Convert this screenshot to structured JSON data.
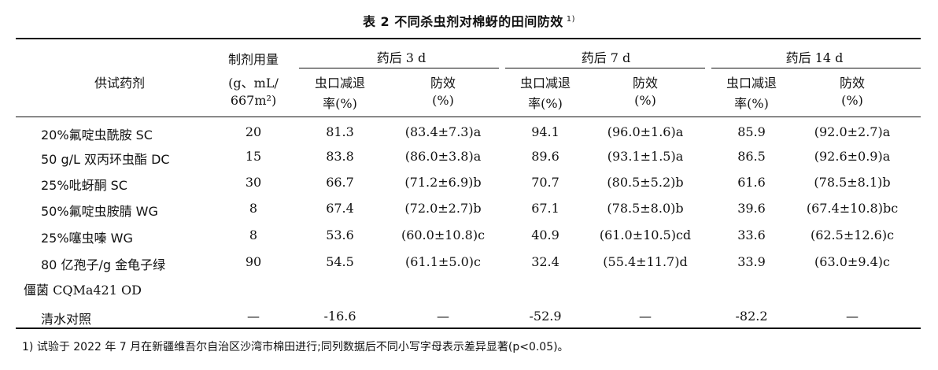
{
  "caption": {
    "title": "表 2   不同杀虫剂对棉蚜的田间防效",
    "note_mark": "1)"
  },
  "header": {
    "agent": "供试药剂",
    "dose_line1": "制剂用量",
    "dose_line2": "(g、mL/",
    "dose_line3": "667m²)",
    "groups": [
      "药后 3 d",
      "药后 7 d",
      "药后 14 d"
    ],
    "reduction_line1": "虫口减退",
    "reduction_line2": "率(%)",
    "efficacy_line1": "防效",
    "efficacy_line2": "(%)"
  },
  "rows": [
    {
      "agent": "20%氟啶虫酰胺 SC",
      "agent2": "",
      "dose": "20",
      "r3": "81.3",
      "e3": "(83.4±7.3)a",
      "r7": "94.1",
      "e7": "(96.0±1.6)a",
      "r14": "85.9",
      "e14": "(92.0±2.7)a"
    },
    {
      "agent": "50 g/L 双丙环虫酯 DC",
      "agent2": "",
      "dose": "15",
      "r3": "83.8",
      "e3": "(86.0±3.8)a",
      "r7": "89.6",
      "e7": "(93.1±1.5)a",
      "r14": "86.5",
      "e14": "(92.6±0.9)a"
    },
    {
      "agent": "25%吡蚜酮 SC",
      "agent2": "",
      "dose": "30",
      "r3": "66.7",
      "e3": "(71.2±6.9)b",
      "r7": "70.7",
      "e7": "(80.5±5.2)b",
      "r14": "61.6",
      "e14": "(78.5±8.1)b"
    },
    {
      "agent": "50%氟啶虫胺腈 WG",
      "agent2": "",
      "dose": "8",
      "r3": "67.4",
      "e3": "(72.0±2.7)b",
      "r7": "67.1",
      "e7": "(78.5±8.0)b",
      "r14": "39.6",
      "e14": "(67.4±10.8)bc"
    },
    {
      "agent": "25%噻虫嗪 WG",
      "agent2": "",
      "dose": "8",
      "r3": "53.6",
      "e3": "(60.0±10.8)c",
      "r7": "40.9",
      "e7": "(61.0±10.5)cd",
      "r14": "33.6",
      "e14": "(62.5±12.6)c"
    },
    {
      "agent": "80 亿孢子/g 金龟子绿",
      "agent2": "僵菌 CQMa421 OD",
      "dose": "90",
      "r3": "54.5",
      "e3": "(61.1±5.0)c",
      "r7": "32.4",
      "e7": "(55.4±11.7)d",
      "r14": "33.9",
      "e14": "(63.0±9.4)c"
    },
    {
      "agent": "清水对照",
      "agent2": "",
      "dose": "—",
      "r3": "-16.6",
      "e3": "—",
      "r7": "-52.9",
      "e7": "—",
      "r14": "-82.2",
      "e14": "—"
    }
  ],
  "footnote": "1) 试验于 2022 年 7 月在新疆维吾尔自治区沙湾市棉田进行;同列数据后不同小写字母表示差异显著(p<0.05)。"
}
